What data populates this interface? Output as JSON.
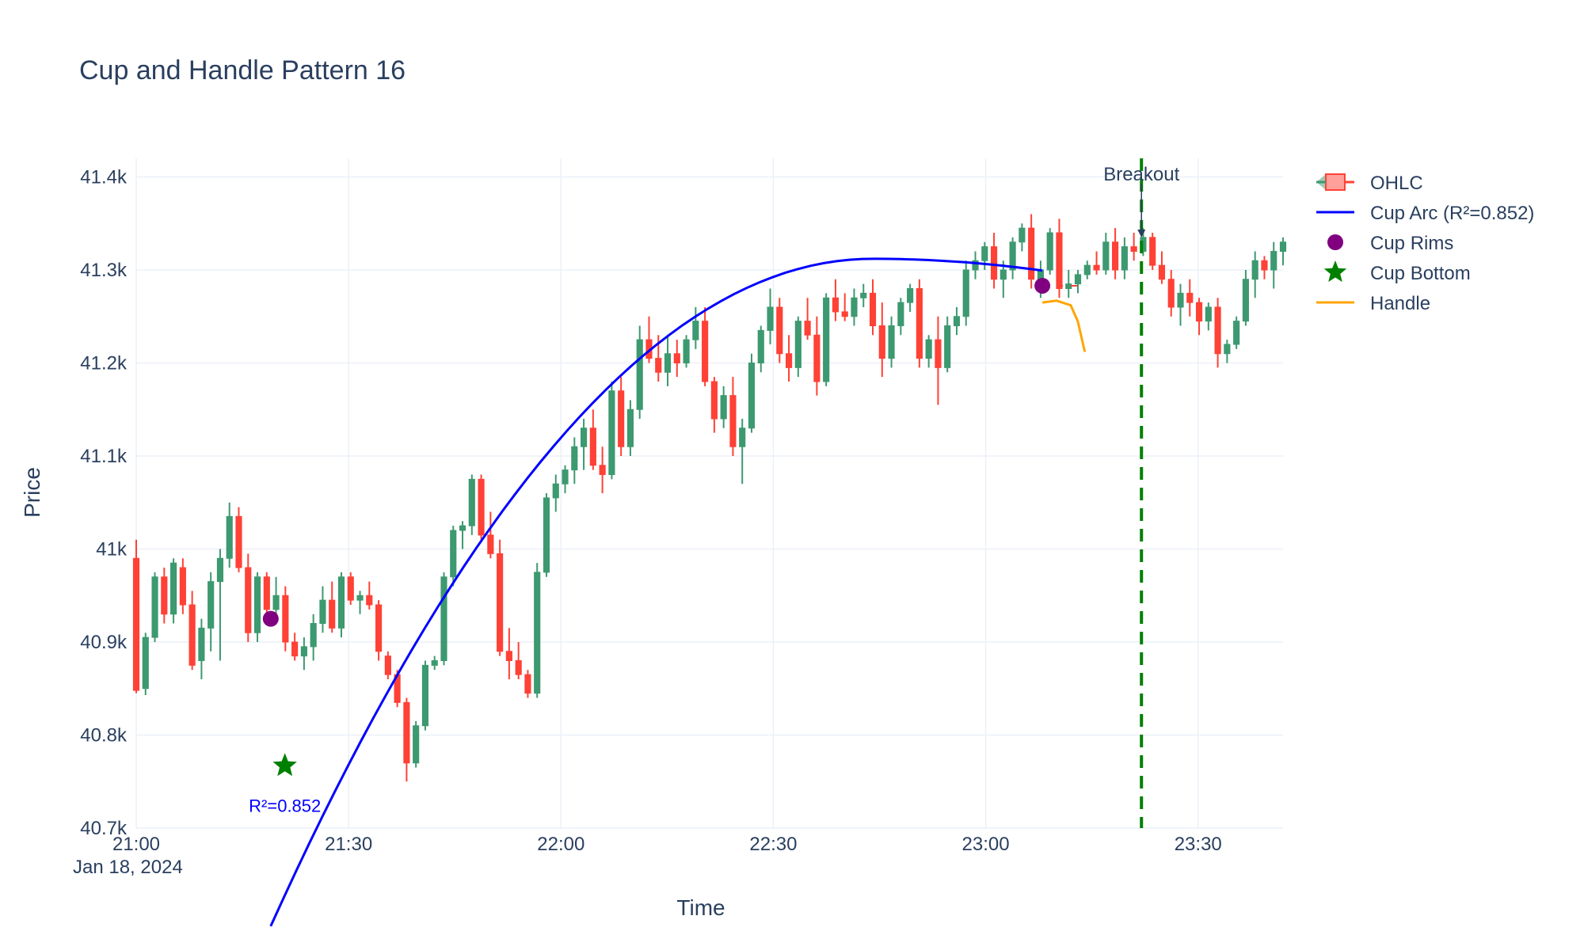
{
  "chart_data": {
    "type": "candlestick",
    "title": "Cup and Handle Pattern 16",
    "xlabel": "Time",
    "ylabel": "Price",
    "date_label": "Jan 18, 2024",
    "x_ticks": [
      "21:00",
      "21:30",
      "22:00",
      "22:30",
      "23:00",
      "23:30"
    ],
    "y_ticks": [
      "40.7k",
      "40.8k",
      "40.9k",
      "41k",
      "41.1k",
      "41.2k",
      "41.3k",
      "41.4k"
    ],
    "x_range": [
      "21:00",
      "23:42"
    ],
    "ylim": [
      40700,
      41420
    ],
    "colors": {
      "increasing": "#3d9970",
      "decreasing": "#ff4136",
      "cup_arc": "#0000ff",
      "rims": "#800080",
      "bottom": "#008000",
      "handle": "#ffa500",
      "breakout": "#008000"
    },
    "legend": [
      {
        "label": "OHLC",
        "icon": "candlestick-icon"
      },
      {
        "label": "Cup Arc (R²=0.852)",
        "icon": "line-icon",
        "color": "#0000ff"
      },
      {
        "label": "Cup Rims",
        "icon": "circle-icon",
        "color": "#800080"
      },
      {
        "label": "Cup Bottom",
        "icon": "star-icon",
        "color": "#008000"
      },
      {
        "label": "Handle",
        "icon": "line-icon",
        "color": "#ffa500"
      }
    ],
    "candles": [
      [
        40990,
        41010,
        40845,
        40848
      ],
      [
        40850,
        40910,
        40843,
        40905
      ],
      [
        40905,
        40975,
        40900,
        40970
      ],
      [
        40970,
        40980,
        40920,
        40930
      ],
      [
        40930,
        40990,
        40920,
        40985
      ],
      [
        40980,
        40990,
        40930,
        40940
      ],
      [
        40940,
        40955,
        40870,
        40875
      ],
      [
        40880,
        40925,
        40860,
        40915
      ],
      [
        40915,
        40975,
        40890,
        40965
      ],
      [
        40965,
        41000,
        40880,
        40990
      ],
      [
        40990,
        41050,
        40980,
        41035
      ],
      [
        41035,
        41045,
        40975,
        40980
      ],
      [
        40980,
        40995,
        40900,
        40910
      ],
      [
        40910,
        40975,
        40900,
        40970
      ],
      [
        40970,
        40975,
        40920,
        40935
      ],
      [
        40935,
        40970,
        40925,
        40950
      ],
      [
        40950,
        40960,
        40890,
        40900
      ],
      [
        40900,
        40910,
        40880,
        40885
      ],
      [
        40885,
        40905,
        40870,
        40895
      ],
      [
        40895,
        40930,
        40880,
        40920
      ],
      [
        40920,
        40960,
        40910,
        40945
      ],
      [
        40945,
        40965,
        40910,
        40915
      ],
      [
        40915,
        40975,
        40905,
        40970
      ],
      [
        40970,
        40975,
        40940,
        40945
      ],
      [
        40945,
        40955,
        40930,
        40950
      ],
      [
        40950,
        40965,
        40935,
        40940
      ],
      [
        40940,
        40945,
        40880,
        40890
      ],
      [
        40885,
        40890,
        40860,
        40865
      ],
      [
        40865,
        40870,
        40830,
        40835
      ],
      [
        40835,
        40840,
        40750,
        40770
      ],
      [
        40770,
        40815,
        40765,
        40810
      ],
      [
        40810,
        40880,
        40805,
        40875
      ],
      [
        40875,
        40885,
        40870,
        40880
      ],
      [
        40880,
        40975,
        40875,
        40970
      ],
      [
        40970,
        41025,
        40960,
        41020
      ],
      [
        41020,
        41030,
        41000,
        41025
      ],
      [
        41025,
        41080,
        41015,
        41075
      ],
      [
        41075,
        41080,
        41010,
        41015
      ],
      [
        41015,
        41040,
        40990,
        40995
      ],
      [
        40995,
        41010,
        40885,
        40890
      ],
      [
        40890,
        40915,
        40860,
        40880
      ],
      [
        40880,
        40900,
        40860,
        40865
      ],
      [
        40865,
        40870,
        40840,
        40845
      ],
      [
        40845,
        40985,
        40840,
        40975
      ],
      [
        40975,
        41060,
        40970,
        41055
      ],
      [
        41055,
        41080,
        41040,
        41070
      ],
      [
        41070,
        41090,
        41060,
        41085
      ],
      [
        41085,
        41120,
        41070,
        41110
      ],
      [
        41110,
        41140,
        41085,
        41130
      ],
      [
        41130,
        41150,
        41085,
        41090
      ],
      [
        41090,
        41110,
        41060,
        41080
      ],
      [
        41080,
        41180,
        41075,
        41170
      ],
      [
        41170,
        41185,
        41100,
        41110
      ],
      [
        41110,
        41160,
        41100,
        41150
      ],
      [
        41150,
        41240,
        41140,
        41225
      ],
      [
        41225,
        41250,
        41200,
        41205
      ],
      [
        41205,
        41230,
        41180,
        41190
      ],
      [
        41190,
        41230,
        41175,
        41210
      ],
      [
        41210,
        41225,
        41185,
        41200
      ],
      [
        41200,
        41230,
        41195,
        41225
      ],
      [
        41225,
        41260,
        41215,
        41245
      ],
      [
        41245,
        41260,
        41175,
        41180
      ],
      [
        41180,
        41185,
        41125,
        41140
      ],
      [
        41140,
        41175,
        41130,
        41165
      ],
      [
        41165,
        41185,
        41100,
        41110
      ],
      [
        41110,
        41140,
        41070,
        41130
      ],
      [
        41130,
        41210,
        41125,
        41200
      ],
      [
        41200,
        41240,
        41190,
        41235
      ],
      [
        41235,
        41280,
        41220,
        41260
      ],
      [
        41260,
        41270,
        41200,
        41210
      ],
      [
        41210,
        41230,
        41180,
        41195
      ],
      [
        41195,
        41250,
        41185,
        41245
      ],
      [
        41245,
        41270,
        41225,
        41230
      ],
      [
        41230,
        41250,
        41165,
        41180
      ],
      [
        41180,
        41275,
        41175,
        41270
      ],
      [
        41270,
        41290,
        41245,
        41255
      ],
      [
        41255,
        41275,
        41245,
        41250
      ],
      [
        41250,
        41280,
        41240,
        41270
      ],
      [
        41270,
        41285,
        41260,
        41275
      ],
      [
        41275,
        41290,
        41230,
        41240
      ],
      [
        41240,
        41265,
        41185,
        41205
      ],
      [
        41205,
        41250,
        41195,
        41240
      ],
      [
        41240,
        41270,
        41230,
        41265
      ],
      [
        41265,
        41285,
        41255,
        41280
      ],
      [
        41280,
        41290,
        41195,
        41205
      ],
      [
        41205,
        41230,
        41195,
        41225
      ],
      [
        41225,
        41250,
        41155,
        41195
      ],
      [
        41195,
        41250,
        41190,
        41240
      ],
      [
        41240,
        41260,
        41230,
        41250
      ],
      [
        41250,
        41310,
        41240,
        41300
      ],
      [
        41300,
        41320,
        41290,
        41310
      ],
      [
        41310,
        41330,
        41300,
        41325
      ],
      [
        41325,
        41340,
        41280,
        41290
      ],
      [
        41290,
        41310,
        41270,
        41300
      ],
      [
        41300,
        41335,
        41290,
        41330
      ],
      [
        41330,
        41350,
        41320,
        41345
      ],
      [
        41345,
        41360,
        41280,
        41290
      ],
      [
        41290,
        41310,
        41270,
        41300
      ],
      [
        41300,
        41345,
        41295,
        41340
      ],
      [
        41340,
        41355,
        41270,
        41280
      ],
      [
        41280,
        41300,
        41270,
        41285
      ],
      [
        41285,
        41300,
        41275,
        41295
      ],
      [
        41295,
        41310,
        41290,
        41305
      ],
      [
        41305,
        41320,
        41295,
        41300
      ],
      [
        41300,
        41340,
        41295,
        41330
      ],
      [
        41330,
        41345,
        41290,
        41300
      ],
      [
        41300,
        41335,
        41290,
        41325
      ],
      [
        41325,
        41340,
        41310,
        41320
      ],
      [
        41320,
        41345,
        41315,
        41335
      ],
      [
        41335,
        41340,
        41300,
        41305
      ],
      [
        41305,
        41320,
        41285,
        41290
      ],
      [
        41290,
        41300,
        41250,
        41260
      ],
      [
        41260,
        41285,
        41240,
        41275
      ],
      [
        41275,
        41290,
        41250,
        41265
      ],
      [
        41265,
        41270,
        41230,
        41245
      ],
      [
        41245,
        41265,
        41235,
        41260
      ],
      [
        41260,
        41270,
        41195,
        41210
      ],
      [
        41210,
        41225,
        41200,
        41220
      ],
      [
        41220,
        41250,
        41215,
        41245
      ],
      [
        41245,
        41300,
        41240,
        41290
      ],
      [
        41290,
        41320,
        41270,
        41310
      ],
      [
        41310,
        41315,
        41290,
        41300
      ],
      [
        41300,
        41330,
        41280,
        41320
      ],
      [
        41320,
        41335,
        41305,
        41330
      ]
    ],
    "cup_rims": [
      {
        "x": "21:19",
        "y": 40925
      },
      {
        "x": "23:08",
        "y": 41283
      }
    ],
    "cup_bottom": {
      "x": "21:21",
      "y": 40767
    },
    "breakout": {
      "x": "23:22",
      "label": "Breakout"
    },
    "r2_label": "R²=0.852"
  }
}
